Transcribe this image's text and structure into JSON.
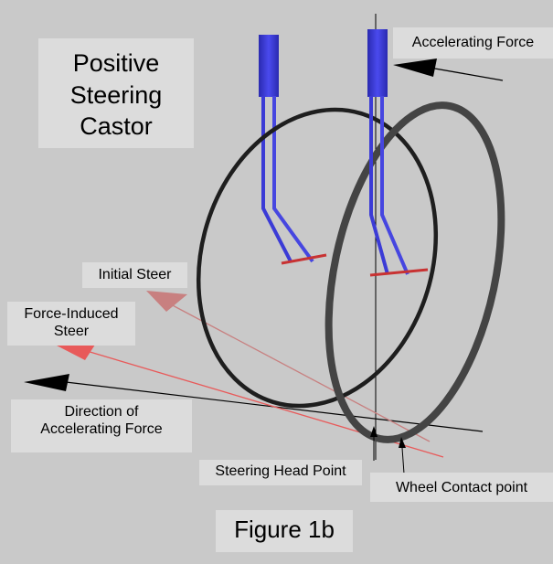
{
  "title": "Positive\nSteering\nCastor",
  "labels": {
    "accelerating_force": "Accelerating Force",
    "initial_steer": "Initial Steer",
    "force_induced_steer": "Force-Induced\nSteer",
    "direction_of_accelerating_force": "Direction of\nAccelerating Force",
    "steering_head_point": "Steering Head Point",
    "wheel_contact_point": "Wheel Contact point"
  },
  "figure_caption": "Figure 1b",
  "colors": {
    "background": "#c9c9c9",
    "label_box": "#dcdcdc",
    "fork_blue": "#3b3bd6",
    "axle_red": "#c83232",
    "initial_steer_arrow": "#c88080",
    "force_steer_arrow": "#e85a5a",
    "wheel_dark": "#1e1e1e",
    "wheel_gray": "#444444"
  }
}
